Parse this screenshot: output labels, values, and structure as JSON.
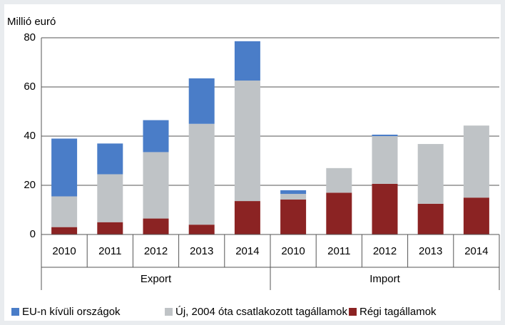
{
  "chart_data": {
    "type": "stacked_bar",
    "y_label": "Millió euró",
    "categories": [
      "2010",
      "2011",
      "2012",
      "2013",
      "2014",
      "2010",
      "2011",
      "2012",
      "2013",
      "2014"
    ],
    "groups": [
      "Export",
      "Import"
    ],
    "series": [
      {
        "name": "EU-n kívüli országok",
        "color": "#4a7dc8",
        "values": [
          23.5,
          12.5,
          13,
          18.5,
          16,
          1.5,
          0,
          0.6,
          0,
          0
        ]
      },
      {
        "name": "Új, 2004 óta csatlakozott tagállamok",
        "color": "#bfc3c6",
        "values": [
          12.5,
          19.5,
          27,
          41,
          49,
          2.3,
          10,
          19.4,
          24.3,
          29.3
        ]
      },
      {
        "name": "Régi tagállamok",
        "color": "#8b2323",
        "values": [
          3,
          5,
          6.5,
          4,
          13.6,
          14.2,
          17,
          20.6,
          12.5,
          15
        ]
      }
    ],
    "ylim": [
      0,
      80
    ],
    "yticks": [
      0,
      20,
      40,
      60,
      80
    ],
    "grid": true,
    "legend": "bottom"
  }
}
